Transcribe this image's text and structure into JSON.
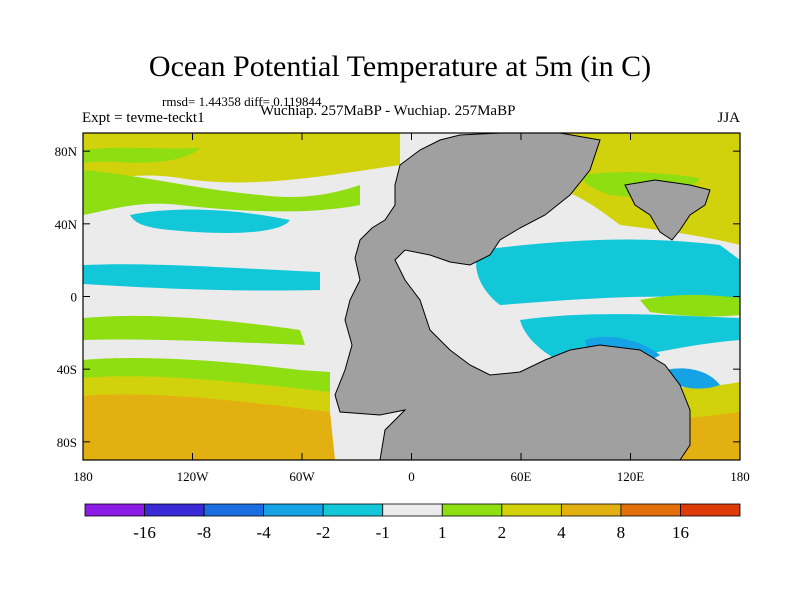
{
  "chart_data": {
    "type": "heatmap",
    "title": "Ocean Potential Temperature at 5m (in C)",
    "stats_line": "rmsd= 1.44358 diff= 0.119844",
    "left_label": "Expt = tevme-teckt1",
    "center_label": "Wuchiap. 257MaBP - Wuchiap. 257MaBP",
    "right_label": "JJA",
    "xlim": [
      -180,
      180
    ],
    "ylim": [
      -90,
      90
    ],
    "x_ticks": [
      {
        "value": -180,
        "label": "180"
      },
      {
        "value": -120,
        "label": "120W"
      },
      {
        "value": -60,
        "label": "60W"
      },
      {
        "value": 0,
        "label": "0"
      },
      {
        "value": 60,
        "label": "60E"
      },
      {
        "value": 120,
        "label": "120E"
      },
      {
        "value": 180,
        "label": "180"
      }
    ],
    "y_ticks": [
      {
        "value": 80,
        "label": "80N"
      },
      {
        "value": 40,
        "label": "40N"
      },
      {
        "value": 0,
        "label": "0"
      },
      {
        "value": -40,
        "label": "40S"
      },
      {
        "value": -80,
        "label": "80S"
      }
    ],
    "colorbar": {
      "colors": [
        "#8c1be6",
        "#3a2ad6",
        "#1a6ee0",
        "#16a3e6",
        "#12c7d8",
        "#ebebeb",
        "#8ede12",
        "#d2d20c",
        "#e2b010",
        "#e3700a",
        "#dd3a0a"
      ],
      "levels": [
        "-16",
        "-8",
        "-4",
        "-2",
        "-1",
        "1",
        "2",
        "4",
        "8",
        "16"
      ]
    },
    "land_color": "#a0a0a0",
    "background_color": "#ebebeb"
  }
}
